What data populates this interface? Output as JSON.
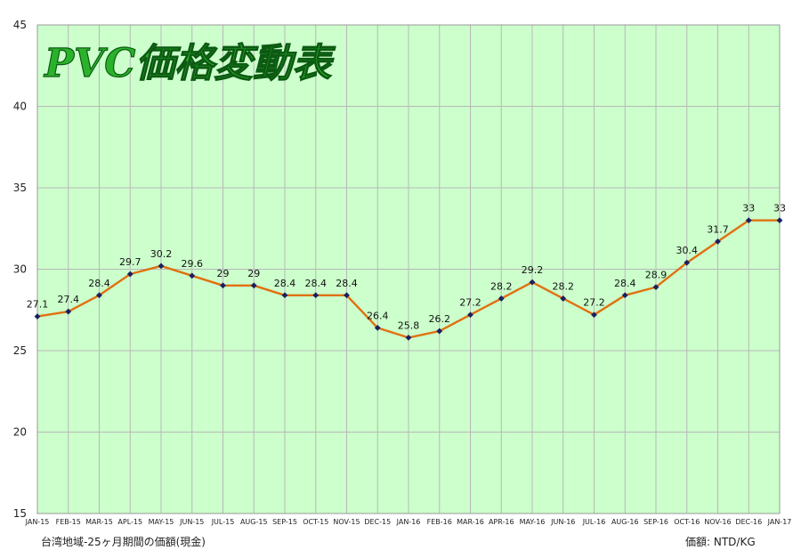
{
  "chart_data": {
    "type": "line",
    "title": "PVC価格変動表",
    "categories": [
      "JAN-15",
      "FEB-15",
      "MAR-15",
      "APL-15",
      "MAY-15",
      "JUN-15",
      "JUL-15",
      "AUG-15",
      "SEP-15",
      "OCT-15",
      "NOV-15",
      "DEC-15",
      "JAN-16",
      "FEB-16",
      "MAR-16",
      "APR-16",
      "MAY-16",
      "JUN-16",
      "JUL-16",
      "AUG-16",
      "SEP-16",
      "OCT-16",
      "NOV-16",
      "DEC-16",
      "JAN-17"
    ],
    "series": [
      {
        "values": [
          27.1,
          27.4,
          28.4,
          29.7,
          30.2,
          29.6,
          29,
          29,
          28.4,
          28.4,
          28.4,
          26.4,
          25.8,
          26.2,
          27.2,
          28.2,
          29.2,
          28.2,
          27.2,
          28.4,
          28.9,
          30.4,
          31.7,
          33,
          33
        ],
        "labels": [
          "27.1",
          "27.4",
          "28.4",
          "29.7",
          "30.2",
          "29.6",
          "29",
          "29",
          "28.4",
          "28.4",
          "28.4",
          "26.4",
          "25.8",
          "26.2",
          "27.2",
          "28.2",
          "29.2",
          "28.2",
          "27.2",
          "28.4",
          "28.9",
          "30.4",
          "31.7",
          "33",
          "33"
        ],
        "line_color": "#e07010",
        "marker_color": "#1a2060"
      }
    ],
    "ylim": [
      15,
      45
    ],
    "yticks": [
      "15",
      "20",
      "25",
      "30",
      "35",
      "40",
      "45"
    ],
    "grid": true,
    "plot_background": "#ccffcc",
    "grid_color": "#b8b8b8",
    "footer_left": "台湾地域-25ヶ月期間の価額(現金)",
    "footer_right": "価額: NTD/KG"
  }
}
